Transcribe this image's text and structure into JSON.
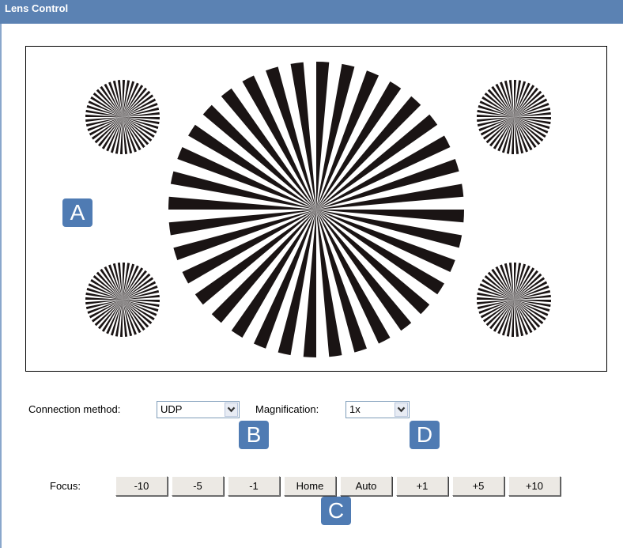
{
  "header": {
    "title": "Lens Control"
  },
  "connection": {
    "label": "Connection method:",
    "value": "UDP"
  },
  "magnification": {
    "label": "Magnification:",
    "value": "1x"
  },
  "focus": {
    "label": "Focus:",
    "buttons": [
      "-10",
      "-5",
      "-1",
      "Home",
      "Auto",
      "+1",
      "+5",
      "+10"
    ]
  },
  "callouts": [
    "A",
    "B",
    "C",
    "D"
  ]
}
